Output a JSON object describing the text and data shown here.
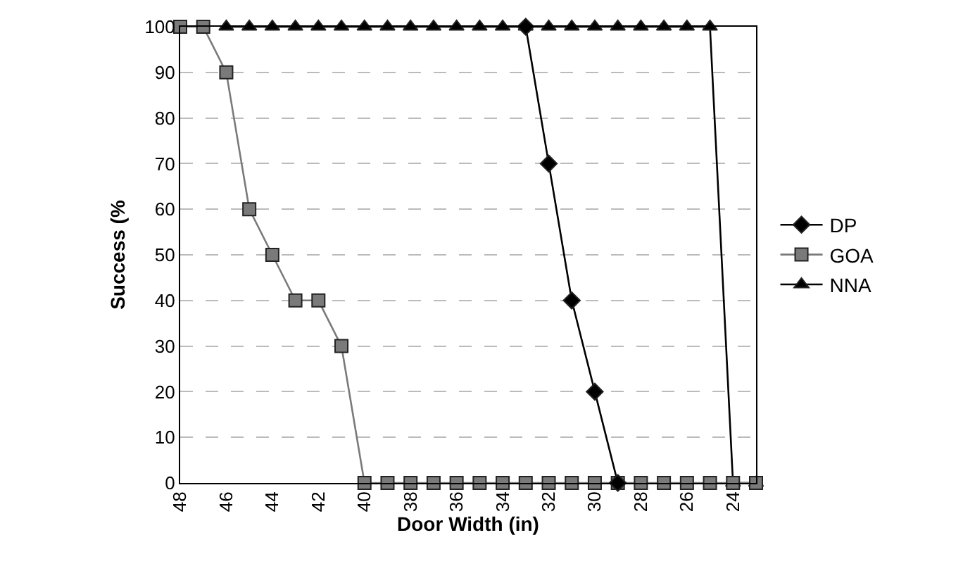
{
  "chart_data": {
    "type": "line",
    "xlabel": "Door Width (in)",
    "ylabel": "Success (%",
    "categories": [
      "48",
      null,
      "46",
      null,
      "44",
      null,
      "42",
      null,
      "40",
      null,
      "38",
      null,
      "36",
      null,
      "34",
      null,
      "32",
      null,
      "30",
      null,
      "28",
      null,
      "26",
      null,
      "24",
      null
    ],
    "series": [
      {
        "name": "DP",
        "color": "#000000",
        "marker": "diamond",
        "values": [
          null,
          null,
          null,
          null,
          null,
          null,
          null,
          null,
          null,
          null,
          null,
          null,
          null,
          null,
          null,
          100,
          70,
          40,
          20,
          0,
          null,
          null,
          null,
          null,
          null,
          null
        ]
      },
      {
        "name": "GOA",
        "color": "#7a7a7a",
        "marker": "square",
        "values": [
          100,
          100,
          90,
          60,
          50,
          40,
          40,
          30,
          0,
          0,
          0,
          0,
          0,
          0,
          0,
          0,
          0,
          0,
          0,
          0,
          0,
          0,
          0,
          0,
          0,
          0
        ]
      },
      {
        "name": "NNA",
        "color": "#000000",
        "marker": "triangle",
        "values": [
          null,
          null,
          100,
          100,
          100,
          100,
          100,
          100,
          100,
          100,
          100,
          100,
          100,
          100,
          100,
          100,
          100,
          100,
          100,
          100,
          100,
          100,
          100,
          100,
          0,
          0
        ]
      }
    ],
    "ylim": [
      0,
      100
    ],
    "yticks": [
      0,
      10,
      20,
      30,
      40,
      50,
      60,
      70,
      80,
      90,
      100
    ],
    "grid": "y",
    "legend": "right",
    "line_style": "solid"
  }
}
